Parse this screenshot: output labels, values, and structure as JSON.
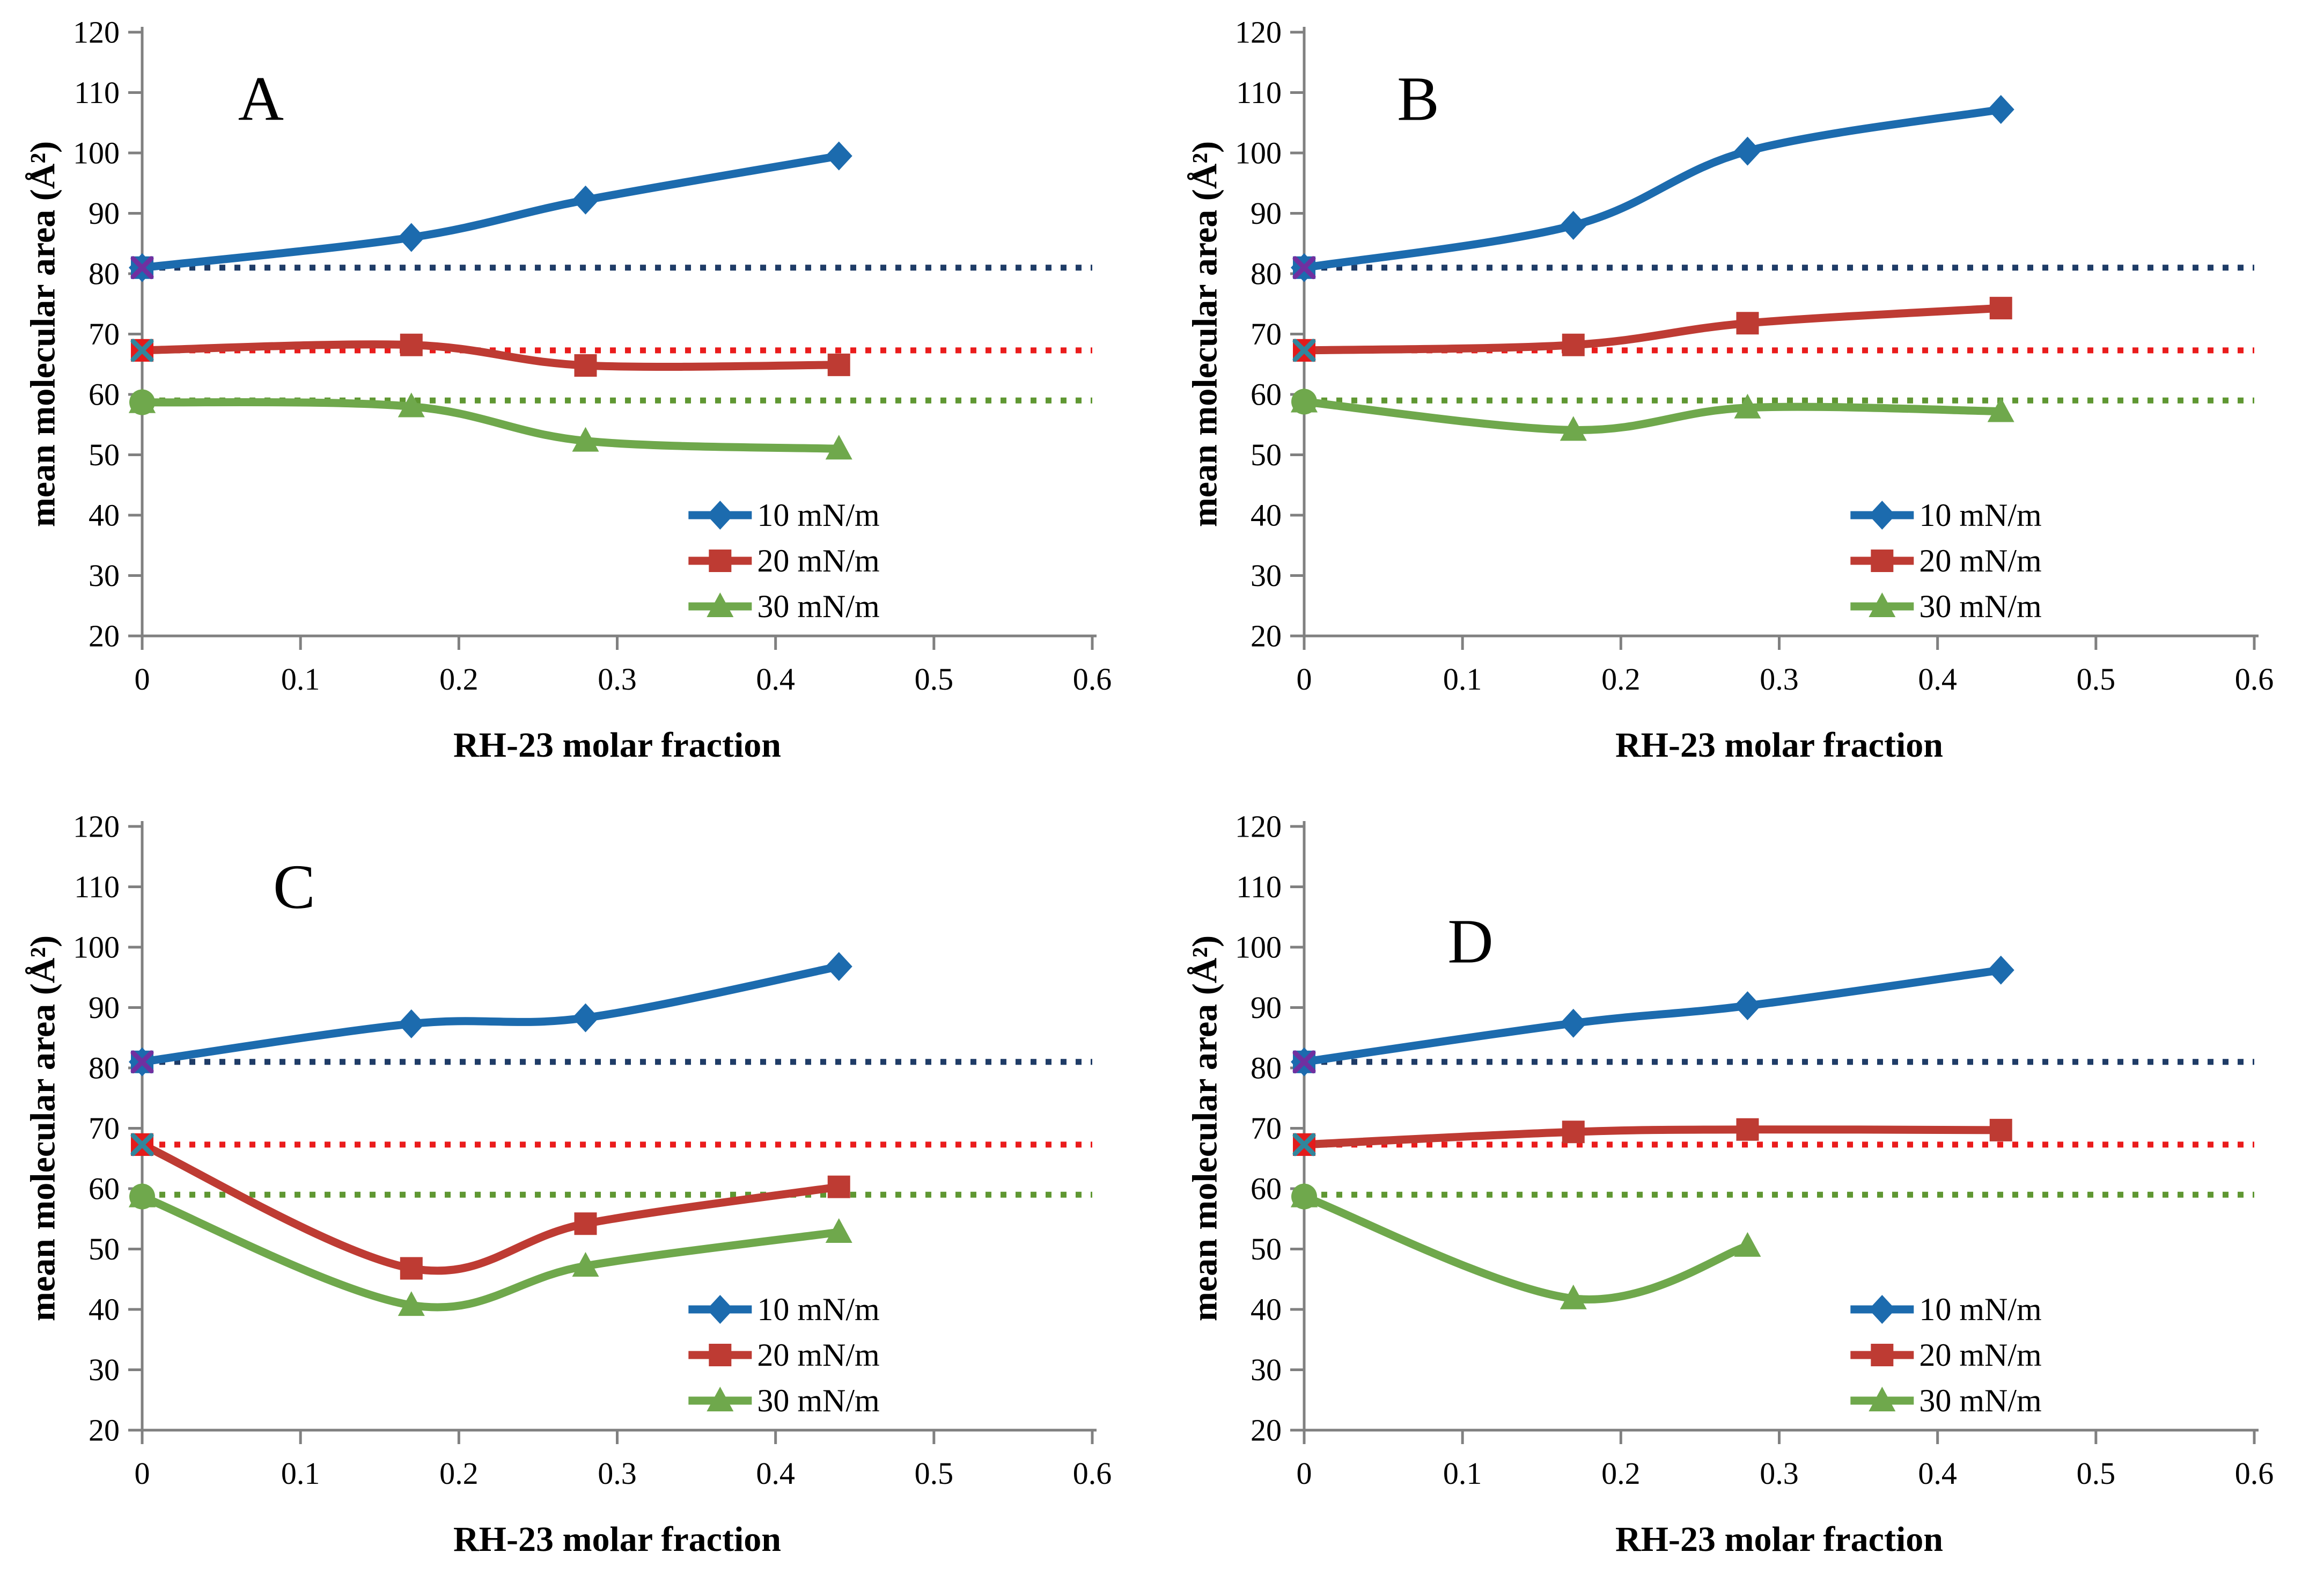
{
  "figure": {
    "background": "#ffffff",
    "axes": {
      "y_label": "mean molecular area  (Å²)",
      "x_label": "RH-23 molar fraction",
      "ylim": [
        20,
        120
      ],
      "xlim": [
        0,
        0.6
      ],
      "y_ticks": [
        20,
        30,
        40,
        50,
        60,
        70,
        80,
        90,
        100,
        110,
        120
      ],
      "x_ticks": [
        "0",
        "0.1",
        "0.2",
        "0.3",
        "0.4",
        "0.5",
        "0.6"
      ],
      "axis_color": "#808080",
      "text_color": "#000000",
      "grid": "off",
      "legend_position": "inside lower right"
    },
    "legend": {
      "items": [
        {
          "label": "10 mN/m",
          "color": "#1C6BAE",
          "marker": "diamond"
        },
        {
          "label": "20 mN/m",
          "color": "#BE3B33",
          "marker": "square"
        },
        {
          "label": "30 mN/m",
          "color": "#6FA84C",
          "marker": "triangle"
        }
      ]
    },
    "origin_markers": [
      {
        "shape": "square",
        "fill": "#1C6BAE",
        "x_overlay": "#7030A0"
      },
      {
        "shape": "square",
        "fill": "#E31B1B",
        "x_overlay": "#31859C"
      },
      {
        "shape": "circle_triangle",
        "fill": "#6FA84C",
        "x_overlay": null
      }
    ]
  },
  "chart_data": [
    {
      "type": "line",
      "panel_label": "A",
      "x": [
        0,
        0.17,
        0.28,
        0.44
      ],
      "series": [
        {
          "name": "10 mN/m",
          "color": "#1C6BAE",
          "marker": "diamond",
          "values": [
            81,
            86,
            92.2,
            99.5
          ]
        },
        {
          "name": "20 mN/m",
          "color": "#BE3B33",
          "marker": "square",
          "values": [
            67.3,
            68.2,
            64.8,
            64.9
          ]
        },
        {
          "name": "30 mN/m",
          "color": "#6FA84C",
          "marker": "triangle",
          "values": [
            58.7,
            58,
            52.3,
            51
          ]
        }
      ],
      "ref_lines": [
        {
          "name": "10 mN/m pure reference",
          "value": 81,
          "color": "#1F3C67"
        },
        {
          "name": "20 mN/m pure reference",
          "value": 67.3,
          "color": "#EA1C1C"
        },
        {
          "name": "30 mN/m pure reference",
          "value": 59,
          "color": "#5F9732"
        }
      ]
    },
    {
      "type": "line",
      "panel_label": "B",
      "x": [
        0,
        0.17,
        0.28,
        0.44
      ],
      "series": [
        {
          "name": "10 mN/m",
          "color": "#1C6BAE",
          "marker": "diamond",
          "values": [
            81,
            88,
            100.3,
            107.2
          ]
        },
        {
          "name": "20 mN/m",
          "color": "#BE3B33",
          "marker": "square",
          "values": [
            67.3,
            68.2,
            71.8,
            74.3
          ]
        },
        {
          "name": "30 mN/m",
          "color": "#6FA84C",
          "marker": "triangle",
          "values": [
            58.8,
            54.1,
            57.8,
            57.2
          ]
        }
      ],
      "ref_lines": [
        {
          "name": "10 mN/m pure reference",
          "value": 81,
          "color": "#1F3C67"
        },
        {
          "name": "20 mN/m pure reference",
          "value": 67.3,
          "color": "#EA1C1C"
        },
        {
          "name": "30 mN/m pure reference",
          "value": 59,
          "color": "#5F9732"
        }
      ]
    },
    {
      "type": "line",
      "panel_label": "C",
      "x": [
        0,
        0.17,
        0.28,
        0.44
      ],
      "series": [
        {
          "name": "10 mN/m",
          "color": "#1C6BAE",
          "marker": "diamond",
          "values": [
            81,
            87.3,
            88.3,
            96.8
          ]
        },
        {
          "name": "20 mN/m",
          "color": "#BE3B33",
          "marker": "square",
          "values": [
            67.3,
            46.8,
            54.2,
            60.3
          ]
        },
        {
          "name": "30 mN/m",
          "color": "#6FA84C",
          "marker": "triangle",
          "values": [
            58.7,
            40.7,
            47.2,
            52.8
          ]
        }
      ],
      "ref_lines": [
        {
          "name": "10 mN/m pure reference",
          "value": 81,
          "color": "#1F3C67"
        },
        {
          "name": "20 mN/m pure reference",
          "value": 67.3,
          "color": "#EA1C1C"
        },
        {
          "name": "30 mN/m pure reference",
          "value": 59,
          "color": "#5F9732"
        }
      ]
    },
    {
      "type": "line",
      "panel_label": "D",
      "x": [
        0,
        0.17,
        0.28,
        0.44
      ],
      "series": [
        {
          "name": "10 mN/m",
          "color": "#1C6BAE",
          "marker": "diamond",
          "values": [
            81,
            87.4,
            90.3,
            96.2
          ]
        },
        {
          "name": "20 mN/m",
          "color": "#BE3B33",
          "marker": "square",
          "values": [
            67.3,
            69.4,
            69.8,
            69.7
          ]
        },
        {
          "name": "30 mN/m",
          "color": "#6FA84C",
          "marker": "triangle",
          "x": [
            0,
            0.17,
            0.28
          ],
          "values": [
            58.7,
            41.8,
            50.5
          ]
        }
      ],
      "ref_lines": [
        {
          "name": "10 mN/m pure reference",
          "value": 81,
          "color": "#1F3C67"
        },
        {
          "name": "20 mN/m pure reference",
          "value": 67.3,
          "color": "#EA1C1C"
        },
        {
          "name": "30 mN/m pure reference",
          "value": 59,
          "color": "#5F9732"
        }
      ]
    }
  ]
}
